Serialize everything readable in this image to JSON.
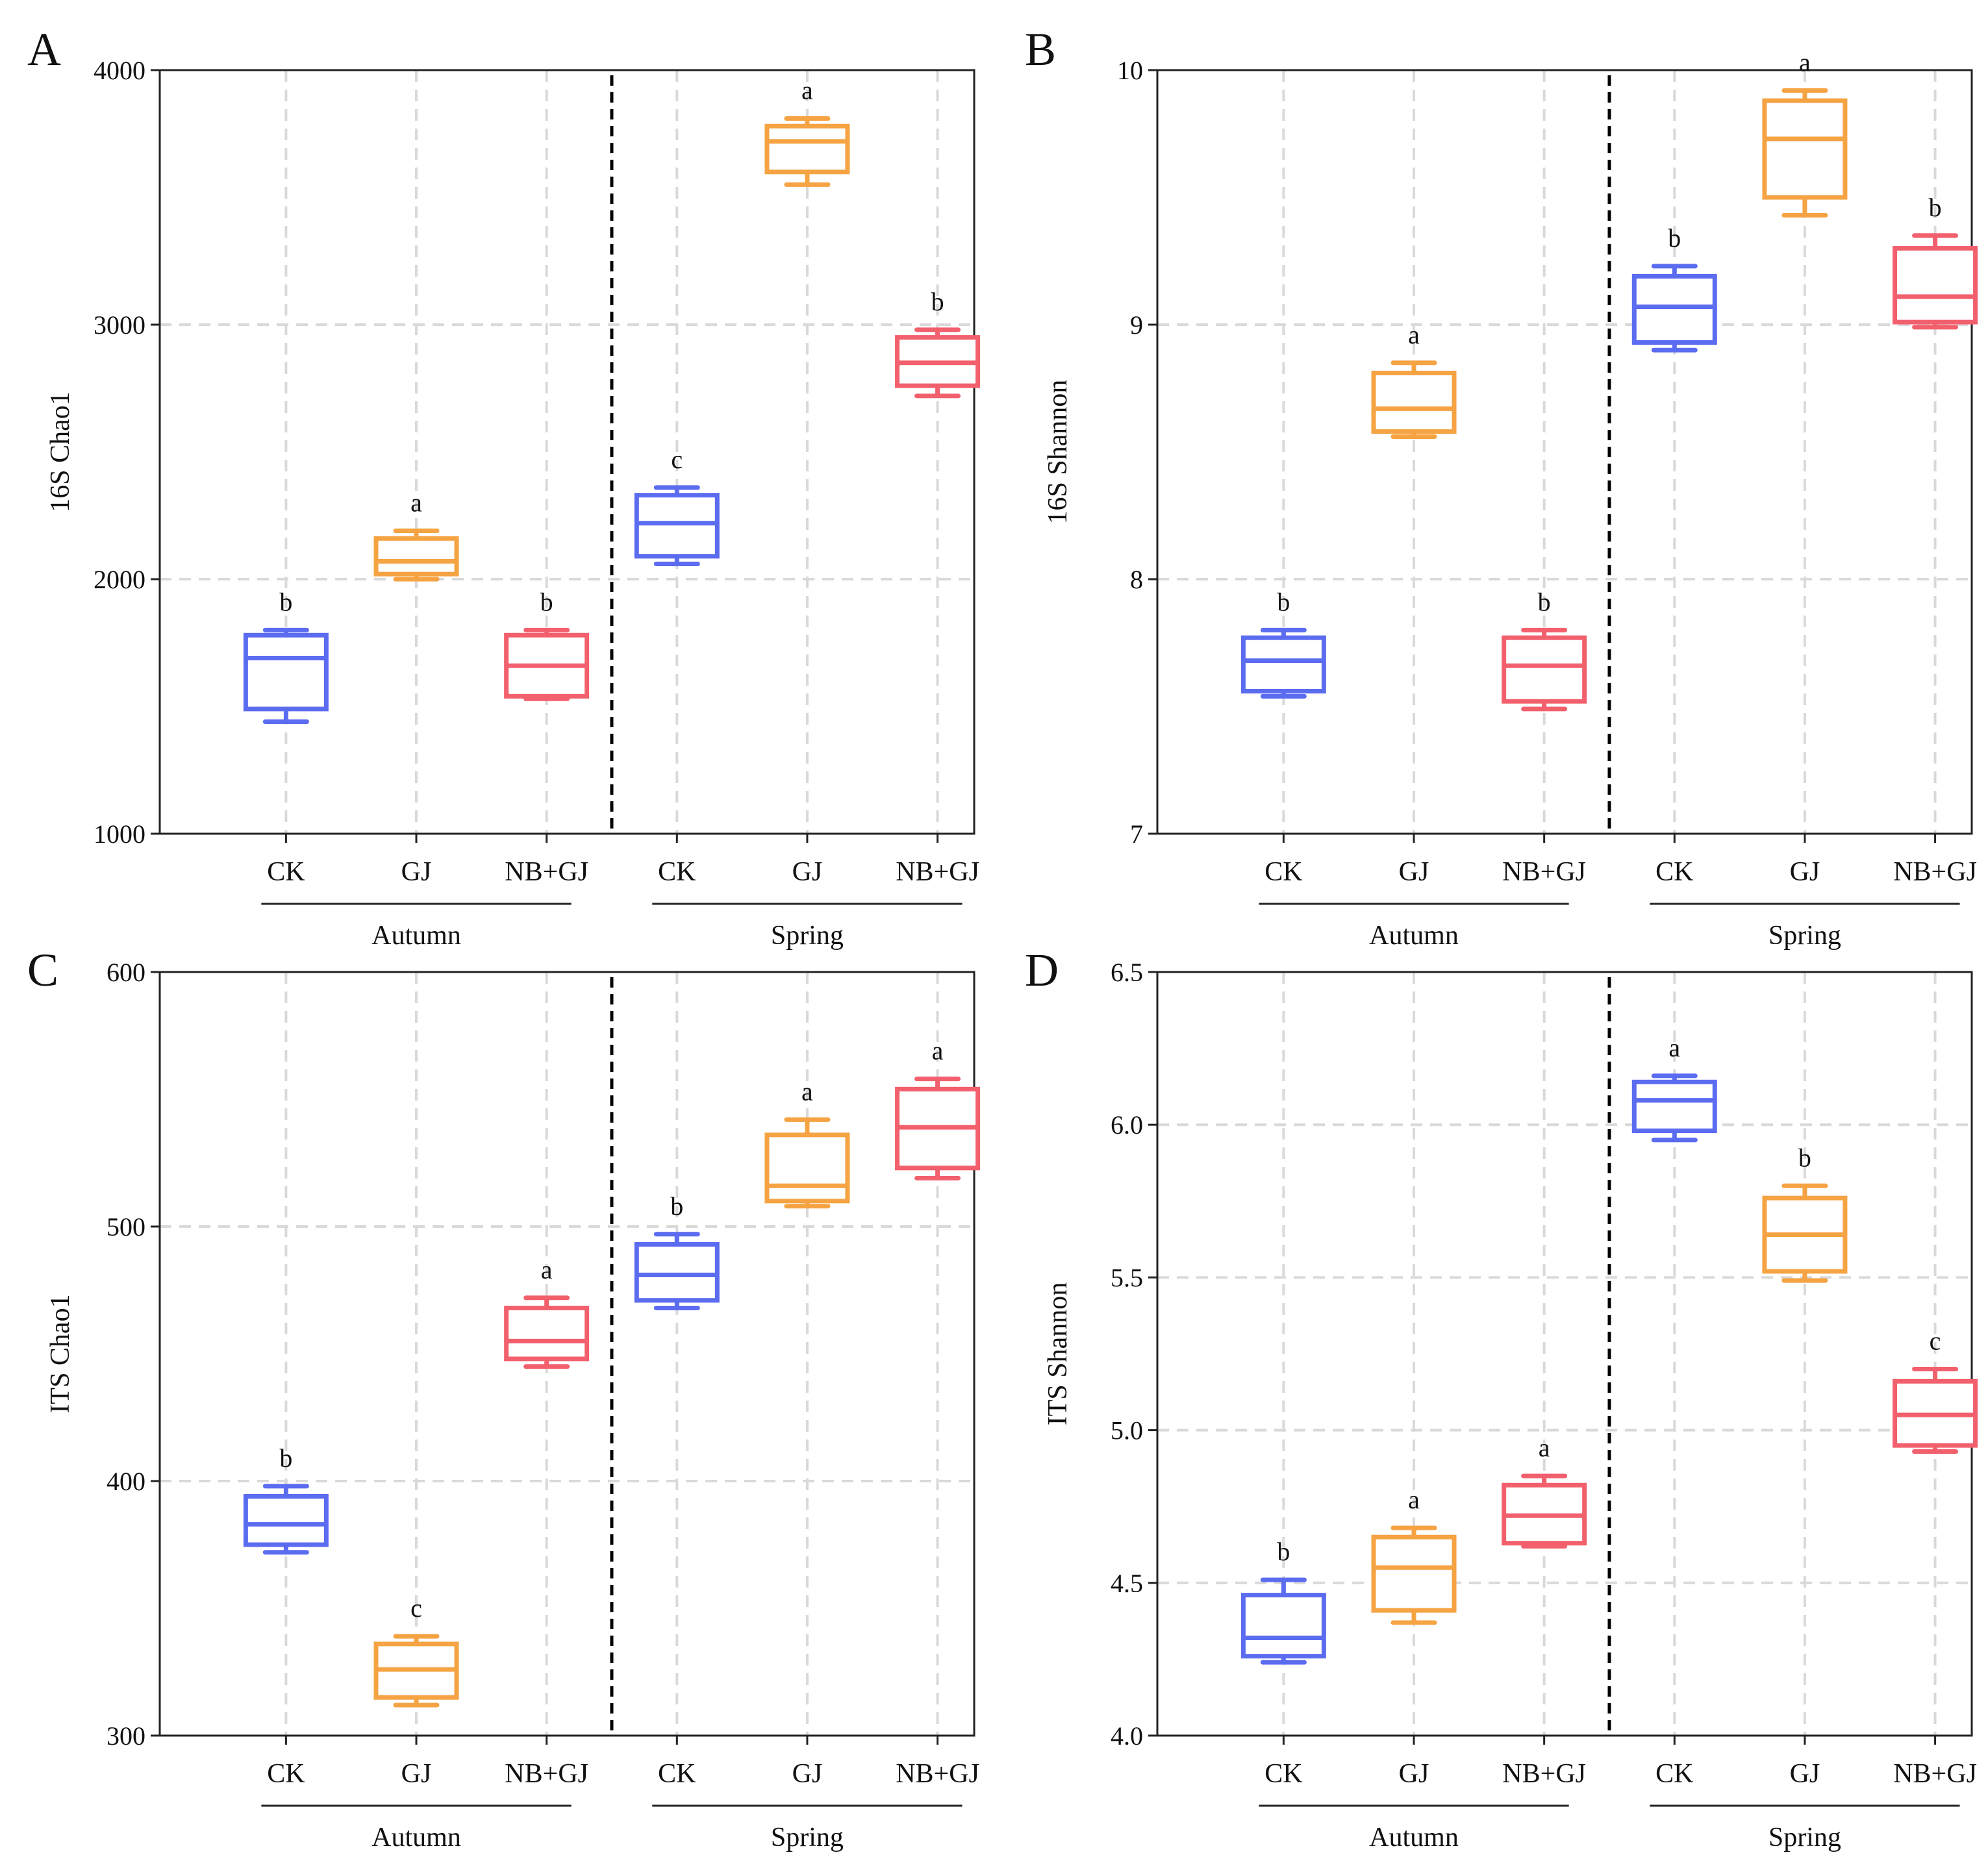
{
  "colors": {
    "CK": "#5b6cf0",
    "GJ": "#f5a343",
    "NB+GJ": "#f2606d",
    "grid": "#d9d9d9",
    "axis": "#222222",
    "divider": "#000000"
  },
  "chart_data": [
    {
      "panel": "A",
      "type": "box",
      "ylabel": "16S Chao1",
      "ylim": [
        1000,
        4000
      ],
      "yticks": [
        "1000",
        "2000",
        "3000",
        "4000"
      ],
      "ytick_values": [
        1000,
        2000,
        3000,
        4000
      ],
      "categories": [
        "CK",
        "GJ",
        "NB+GJ",
        "CK",
        "GJ",
        "NB+GJ"
      ],
      "groups": [
        {
          "name": "Autumn",
          "span": [
            0,
            2
          ]
        },
        {
          "name": "Spring",
          "span": [
            3,
            5
          ]
        }
      ],
      "boxes": [
        {
          "treatment": "CK",
          "min": 1440,
          "q1": 1490,
          "median": 1690,
          "q3": 1780,
          "max": 1800,
          "sig": "b"
        },
        {
          "treatment": "GJ",
          "min": 2000,
          "q1": 2020,
          "median": 2070,
          "q3": 2160,
          "max": 2190,
          "sig": "a"
        },
        {
          "treatment": "NB+GJ",
          "min": 1530,
          "q1": 1540,
          "median": 1660,
          "q3": 1780,
          "max": 1800,
          "sig": "b"
        },
        {
          "treatment": "CK",
          "min": 2060,
          "q1": 2090,
          "median": 2220,
          "q3": 2330,
          "max": 2360,
          "sig": "c"
        },
        {
          "treatment": "GJ",
          "min": 3550,
          "q1": 3600,
          "median": 3720,
          "q3": 3780,
          "max": 3810,
          "sig": "a"
        },
        {
          "treatment": "NB+GJ",
          "min": 2720,
          "q1": 2760,
          "median": 2850,
          "q3": 2950,
          "max": 2980,
          "sig": "b"
        }
      ]
    },
    {
      "panel": "B",
      "type": "box",
      "ylabel": "16S Shannon",
      "ylim": [
        7,
        10
      ],
      "yticks": [
        "7",
        "8",
        "9",
        "10"
      ],
      "ytick_values": [
        7,
        8,
        9,
        10
      ],
      "categories": [
        "CK",
        "GJ",
        "NB+GJ",
        "CK",
        "GJ",
        "NB+GJ"
      ],
      "groups": [
        {
          "name": "Autumn",
          "span": [
            0,
            2
          ]
        },
        {
          "name": "Spring",
          "span": [
            3,
            5
          ]
        }
      ],
      "boxes": [
        {
          "treatment": "CK",
          "min": 7.54,
          "q1": 7.56,
          "median": 7.68,
          "q3": 7.77,
          "max": 7.8,
          "sig": "b"
        },
        {
          "treatment": "GJ",
          "min": 8.56,
          "q1": 8.58,
          "median": 8.67,
          "q3": 8.81,
          "max": 8.85,
          "sig": "a"
        },
        {
          "treatment": "NB+GJ",
          "min": 7.49,
          "q1": 7.52,
          "median": 7.66,
          "q3": 7.77,
          "max": 7.8,
          "sig": "b"
        },
        {
          "treatment": "CK",
          "min": 8.9,
          "q1": 8.93,
          "median": 9.07,
          "q3": 9.19,
          "max": 9.23,
          "sig": "b"
        },
        {
          "treatment": "GJ",
          "min": 9.43,
          "q1": 9.5,
          "median": 9.73,
          "q3": 9.88,
          "max": 9.92,
          "sig": "a"
        },
        {
          "treatment": "NB+GJ",
          "min": 8.99,
          "q1": 9.01,
          "median": 9.11,
          "q3": 9.3,
          "max": 9.35,
          "sig": "b"
        }
      ]
    },
    {
      "panel": "C",
      "type": "box",
      "ylabel": "ITS Chao1",
      "ylim": [
        300,
        600
      ],
      "yticks": [
        "300",
        "400",
        "500",
        "600"
      ],
      "ytick_values": [
        300,
        400,
        500,
        600
      ],
      "categories": [
        "CK",
        "GJ",
        "NB+GJ",
        "CK",
        "GJ",
        "NB+GJ"
      ],
      "groups": [
        {
          "name": "Autumn",
          "span": [
            0,
            2
          ]
        },
        {
          "name": "Spring",
          "span": [
            3,
            5
          ]
        }
      ],
      "boxes": [
        {
          "treatment": "CK",
          "min": 372,
          "q1": 375,
          "median": 383,
          "q3": 394,
          "max": 398,
          "sig": "b"
        },
        {
          "treatment": "GJ",
          "min": 312,
          "q1": 315,
          "median": 326,
          "q3": 336,
          "max": 339,
          "sig": "c"
        },
        {
          "treatment": "NB+GJ",
          "min": 445,
          "q1": 448,
          "median": 455,
          "q3": 468,
          "max": 472,
          "sig": "a"
        },
        {
          "treatment": "CK",
          "min": 468,
          "q1": 471,
          "median": 481,
          "q3": 493,
          "max": 497,
          "sig": "b"
        },
        {
          "treatment": "GJ",
          "min": 508,
          "q1": 510,
          "median": 516,
          "q3": 536,
          "max": 542,
          "sig": "a"
        },
        {
          "treatment": "NB+GJ",
          "min": 519,
          "q1": 523,
          "median": 539,
          "q3": 554,
          "max": 558,
          "sig": "a"
        }
      ]
    },
    {
      "panel": "D",
      "type": "box",
      "ylabel": "ITS Shannon",
      "ylim": [
        4.0,
        6.5
      ],
      "yticks": [
        "4.0",
        "4.5",
        "5.0",
        "5.5",
        "6.0",
        "6.5"
      ],
      "ytick_values": [
        4.0,
        4.5,
        5.0,
        5.5,
        6.0,
        6.5
      ],
      "categories": [
        "CK",
        "GJ",
        "NB+GJ",
        "CK",
        "GJ",
        "NB+GJ"
      ],
      "groups": [
        {
          "name": "Autumn",
          "span": [
            0,
            2
          ]
        },
        {
          "name": "Spring",
          "span": [
            3,
            5
          ]
        }
      ],
      "boxes": [
        {
          "treatment": "CK",
          "min": 4.24,
          "q1": 4.26,
          "median": 4.32,
          "q3": 4.46,
          "max": 4.51,
          "sig": "b"
        },
        {
          "treatment": "GJ",
          "min": 4.37,
          "q1": 4.41,
          "median": 4.55,
          "q3": 4.65,
          "max": 4.68,
          "sig": "a"
        },
        {
          "treatment": "NB+GJ",
          "min": 4.62,
          "q1": 4.63,
          "median": 4.72,
          "q3": 4.82,
          "max": 4.85,
          "sig": "a"
        },
        {
          "treatment": "CK",
          "min": 5.95,
          "q1": 5.98,
          "median": 6.08,
          "q3": 6.14,
          "max": 6.16,
          "sig": "a"
        },
        {
          "treatment": "GJ",
          "min": 5.49,
          "q1": 5.52,
          "median": 5.64,
          "q3": 5.76,
          "max": 5.8,
          "sig": "b"
        },
        {
          "treatment": "NB+GJ",
          "min": 4.93,
          "q1": 4.95,
          "median": 5.05,
          "q3": 5.16,
          "max": 5.2,
          "sig": "c"
        }
      ]
    }
  ]
}
